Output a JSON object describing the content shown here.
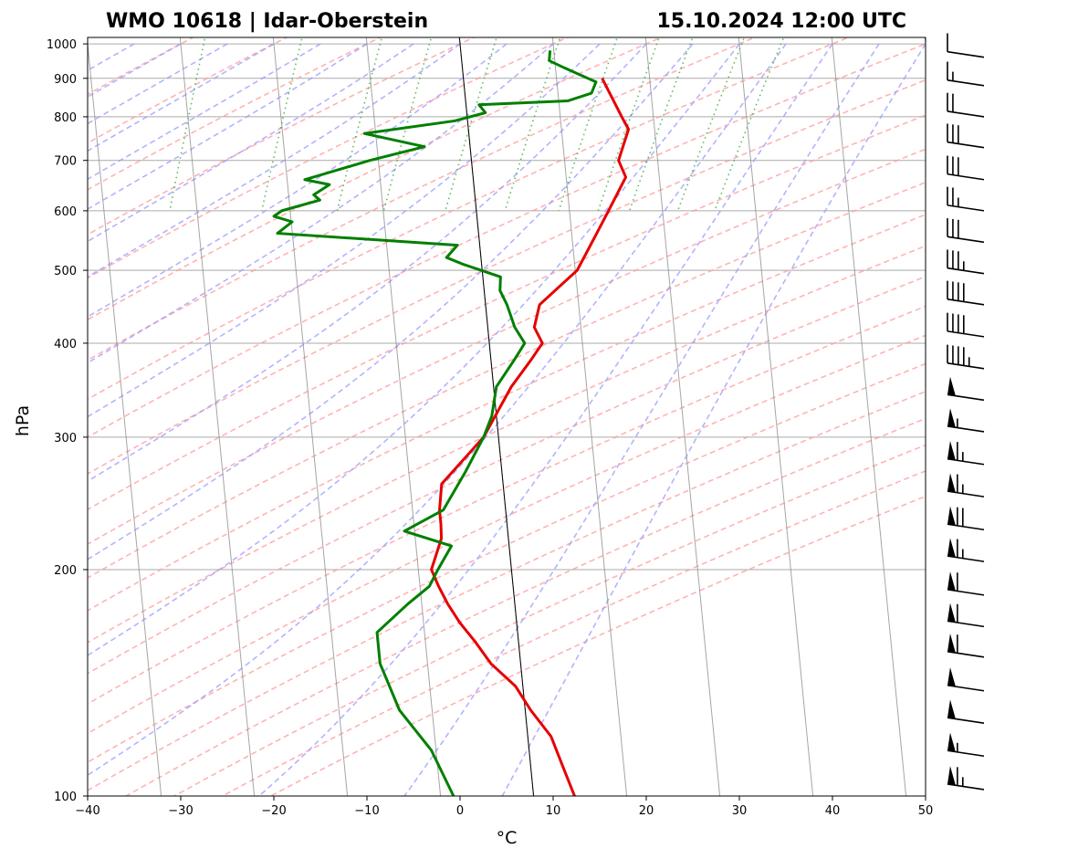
{
  "chart_data": {
    "type": "line",
    "subtype": "skew-T log-P sounding",
    "title_left": "WMO 10618 | Idar-Oberstein",
    "title_right": "15.10.2024 12:00 UTC",
    "xlabel": "°C",
    "ylabel": "hPa",
    "xlim": [
      -40,
      50
    ],
    "ylim": [
      1020,
      100
    ],
    "x_ticks": [
      -40,
      -30,
      -20,
      -10,
      0,
      10,
      20,
      30,
      40,
      50
    ],
    "y_ticks": [
      1000,
      900,
      800,
      700,
      600,
      500,
      400,
      300,
      200,
      100
    ],
    "x_tick_labels": [
      "−40",
      "−30",
      "−20",
      "−10",
      "0",
      "10",
      "20",
      "30",
      "40",
      "50"
    ],
    "y_tick_labels": [
      "1000",
      "900",
      "800",
      "700",
      "600",
      "500",
      "400",
      "300",
      "200",
      "100"
    ],
    "colors": {
      "temperature": "#e60000",
      "dewpoint": "#007f00",
      "dry_adiabats": "#ff9999",
      "moist_adiabats": "#9999ff",
      "mixing_ratio": "#33aa33",
      "isotherms": "#888888",
      "isobars": "#aaaaaa",
      "zero_isotherm": "#000000"
    },
    "series": [
      {
        "name": "Temperature",
        "unit": "°C",
        "points": [
          [
            14.9,
            900
          ],
          [
            16.6,
            800
          ],
          [
            17.2,
            770
          ],
          [
            15.8,
            700
          ],
          [
            16.4,
            665
          ],
          [
            14.2,
            600
          ],
          [
            12.3,
            550
          ],
          [
            10.2,
            500
          ],
          [
            5.8,
            450
          ],
          [
            5.0,
            420
          ],
          [
            5.7,
            400
          ],
          [
            4.3,
            380
          ],
          [
            1.9,
            350
          ],
          [
            -1.6,
            300
          ],
          [
            -6.6,
            260
          ],
          [
            -7.1,
            240
          ],
          [
            -7.1,
            230
          ],
          [
            -7.2,
            220
          ],
          [
            -8.6,
            200
          ],
          [
            -8.0,
            190
          ],
          [
            -7.2,
            180
          ],
          [
            -6.1,
            170
          ],
          [
            -4.6,
            160
          ],
          [
            -3.2,
            150
          ],
          [
            -0.8,
            140
          ],
          [
            0.6,
            130
          ],
          [
            2.5,
            120
          ],
          [
            3.4,
            110
          ],
          [
            4.4,
            100
          ]
        ]
      },
      {
        "name": "Dewpoint",
        "unit": "°C",
        "points": [
          [
            9.6,
            980
          ],
          [
            9.4,
            950
          ],
          [
            10.9,
            930
          ],
          [
            14.2,
            890
          ],
          [
            13.6,
            860
          ],
          [
            11.0,
            840
          ],
          [
            1.4,
            830
          ],
          [
            2.0,
            810
          ],
          [
            -1.4,
            790
          ],
          [
            -11.2,
            760
          ],
          [
            -4.9,
            730
          ],
          [
            -10.9,
            700
          ],
          [
            -18.1,
            660
          ],
          [
            -15.5,
            650
          ],
          [
            -17.3,
            630
          ],
          [
            -16.7,
            620
          ],
          [
            -20.9,
            600
          ],
          [
            -21.8,
            590
          ],
          [
            -19.9,
            580
          ],
          [
            -21.6,
            560
          ],
          [
            -2.4,
            540
          ],
          [
            -3.7,
            520
          ],
          [
            -2.1,
            510
          ],
          [
            1.9,
            490
          ],
          [
            1.7,
            470
          ],
          [
            2.3,
            450
          ],
          [
            2.9,
            420
          ],
          [
            3.8,
            400
          ],
          [
            2.5,
            380
          ],
          [
            0.3,
            350
          ],
          [
            -0.5,
            320
          ],
          [
            -1.6,
            300
          ],
          [
            -3.9,
            270
          ],
          [
            -6.7,
            240
          ],
          [
            -11.1,
            225
          ],
          [
            -6.2,
            215
          ],
          [
            -7.9,
            200
          ],
          [
            -9.0,
            190
          ],
          [
            -11.5,
            180
          ],
          [
            -15.1,
            165
          ],
          [
            -15.1,
            150
          ],
          [
            -13.5,
            130
          ],
          [
            -10.5,
            115
          ],
          [
            -8.6,
            100
          ]
        ]
      }
    ],
    "wind_barbs": [
      {
        "pressure": 102,
        "speed_kt": 65
      },
      {
        "pressure": 113,
        "speed_kt": 55
      },
      {
        "pressure": 125,
        "speed_kt": 50
      },
      {
        "pressure": 138,
        "speed_kt": 50
      },
      {
        "pressure": 153,
        "speed_kt": 60
      },
      {
        "pressure": 168,
        "speed_kt": 60
      },
      {
        "pressure": 185,
        "speed_kt": 60
      },
      {
        "pressure": 205,
        "speed_kt": 65
      },
      {
        "pressure": 226,
        "speed_kt": 70
      },
      {
        "pressure": 250,
        "speed_kt": 65
      },
      {
        "pressure": 276,
        "speed_kt": 65
      },
      {
        "pressure": 305,
        "speed_kt": 55
      },
      {
        "pressure": 336,
        "speed_kt": 50
      },
      {
        "pressure": 370,
        "speed_kt": 45
      },
      {
        "pressure": 408,
        "speed_kt": 40
      },
      {
        "pressure": 450,
        "speed_kt": 40
      },
      {
        "pressure": 495,
        "speed_kt": 35
      },
      {
        "pressure": 545,
        "speed_kt": 30
      },
      {
        "pressure": 600,
        "speed_kt": 25
      },
      {
        "pressure": 660,
        "speed_kt": 30
      },
      {
        "pressure": 728,
        "speed_kt": 30
      },
      {
        "pressure": 800,
        "speed_kt": 20
      },
      {
        "pressure": 880,
        "speed_kt": 15
      },
      {
        "pressure": 960,
        "speed_kt": 10
      }
    ]
  }
}
